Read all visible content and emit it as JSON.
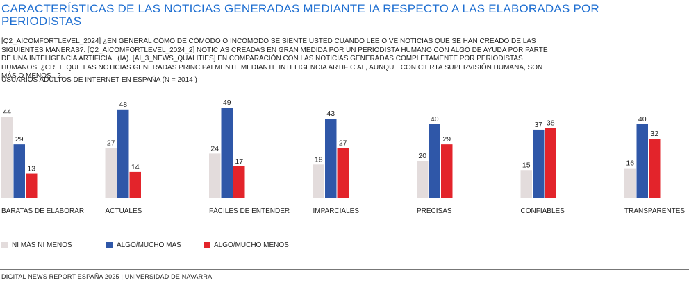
{
  "title": "CARACTERÍSTICAS DE LAS NOTICIAS GENERADAS MEDIANTE IA RESPECTO A LAS ELABORADAS POR PERIODISTAS",
  "question_note": "[Q2_AICOMFORTLEVEL_2024] ¿EN GENERAL CÓMO DE CÓMODO O INCÓMODO SE SIENTE USTED CUANDO LEE O VE NOTICIAS QUE SE HAN CREADO DE LAS SIGUIENTES MANERAS?. [Q2_AICOMFORTLEVEL_2024_2] NOTICIAS CREADAS EN GRAN MEDIDA POR UN PERIODISTA HUMANO CON ALGO DE AYUDA POR PARTE DE UNA INTELIGENCIA ARTIFICIAL (IA). [AI_3_NEWS_QUALITIES] EN COMPARACIÓN CON LAS NOTICIAS GENERADAS COMPLETAMENTE POR PERIODISTAS HUMANOS, ¿CREE QUE LAS NOTICIAS GENERADAS PRINCIPALMENTE MEDIANTE INTELIGENCIA ARTIFICIAL, AUNQUE CON CIERTA SUPERVISIÓN HUMANA, SON MÁS O MENOS...?.",
  "subtitle": "USUARIOS ADULTOS DE INTERNET EN ESPAÑA (N = 2014 )",
  "legend": [
    {
      "label": "NI MÁS NI MENOS",
      "color": "#e3dcdc"
    },
    {
      "label": "ALGO/MUCHO MÁS",
      "color": "#2f57a8"
    },
    {
      "label": "ALGO/MUCHO MENOS",
      "color": "#e3242b"
    }
  ],
  "source": "DIGITAL NEWS REPORT ESPAÑA 2025 | UNIVERSIDAD DE NAVARRA",
  "chart_data": {
    "type": "bar",
    "categories": [
      "BARATAS DE ELABORAR",
      "ACTUALES",
      "FÁCILES DE ENTENDER",
      "IMPARCIALES",
      "PRECISAS",
      "CONFIABLES",
      "TRANSPARENTES"
    ],
    "series": [
      {
        "name": "NI MÁS NI MENOS",
        "color": "#e3dcdc",
        "values": [
          44,
          27,
          24,
          18,
          20,
          15,
          16
        ]
      },
      {
        "name": "ALGO/MUCHO MÁS",
        "color": "#2f57a8",
        "values": [
          29,
          48,
          49,
          43,
          40,
          37,
          40
        ]
      },
      {
        "name": "ALGO/MUCHO MENOS",
        "color": "#e3242b",
        "values": [
          13,
          14,
          17,
          27,
          29,
          38,
          32
        ]
      }
    ],
    "ylim": [
      0,
      50
    ],
    "grid": false,
    "legend_position": "bottom-left"
  }
}
